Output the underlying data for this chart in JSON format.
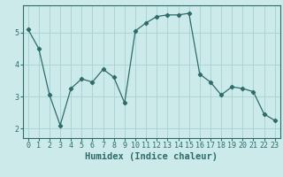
{
  "xlabel": "Humidex (Indice chaleur)",
  "x": [
    0,
    1,
    2,
    3,
    4,
    5,
    6,
    7,
    8,
    9,
    10,
    11,
    12,
    13,
    14,
    15,
    16,
    17,
    18,
    19,
    20,
    21,
    22,
    23
  ],
  "y": [
    5.1,
    4.5,
    3.05,
    2.1,
    3.25,
    3.55,
    3.45,
    3.85,
    3.6,
    2.8,
    5.05,
    5.3,
    5.5,
    5.55,
    5.55,
    5.6,
    3.7,
    3.45,
    3.05,
    3.3,
    3.25,
    3.15,
    2.45,
    2.25
  ],
  "line_color": "#2e6b6b",
  "marker": "D",
  "markersize": 2.2,
  "linewidth": 0.9,
  "bg_color": "#cceaea",
  "grid_color": "#aad4d4",
  "yticks": [
    2,
    3,
    4,
    5
  ],
  "ylim": [
    1.7,
    5.85
  ],
  "xlim": [
    -0.5,
    23.5
  ],
  "tick_fontsize": 6.0,
  "label_fontsize": 7.5
}
